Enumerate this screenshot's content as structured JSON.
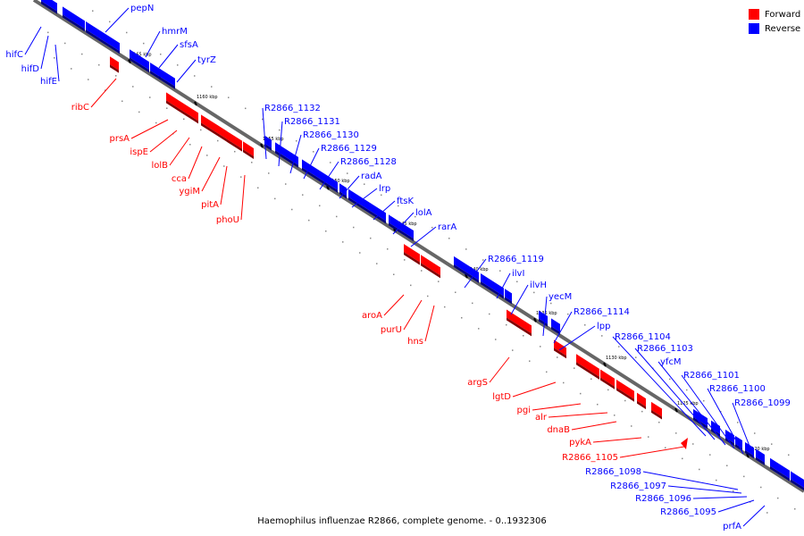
{
  "legend": {
    "forward_label": "Forward",
    "reverse_label": "Reverse",
    "forward_color": "#ff0000",
    "reverse_color": "#0000ff"
  },
  "caption": "Haemophilus influenzae R2866, complete genome. - 0..1932306",
  "scale_labels": [
    "1165 kbp",
    "1160 kbp",
    "1155 kbp",
    "1150 kbp",
    "1145 kbp",
    "1140 kbp",
    "1135 kbp",
    "1130 kbp",
    "1125 kbp",
    "1120 kbp"
  ],
  "genes_forward": [
    "ribC",
    "prsA",
    "ispE",
    "lolB",
    "cca",
    "ygiM",
    "pitA",
    "phoU",
    "aroA",
    "purU",
    "hns",
    "argS",
    "lgtD",
    "pgi",
    "alr",
    "dnaB",
    "pykA",
    "R2866_1105"
  ],
  "genes_reverse": [
    "hifC",
    "hifD",
    "hifE",
    "pepN",
    "hmrM",
    "sfsA",
    "tyrZ",
    "R2866_1132",
    "R2866_1131",
    "R2866_1130",
    "R2866_1129",
    "R2866_1128",
    "radA",
    "lrp",
    "ftsK",
    "lolA",
    "rarA",
    "R2866_1119",
    "ilvI",
    "ilvH",
    "yecM",
    "R2866_1114",
    "lpp",
    "R2866_1104",
    "R2866_1103",
    "yfcM",
    "R2866_1101",
    "R2866_1100",
    "R2866_1099",
    "R2866_1098",
    "R2866_1097",
    "R2866_1096",
    "R2866_1095",
    "prfA"
  ]
}
